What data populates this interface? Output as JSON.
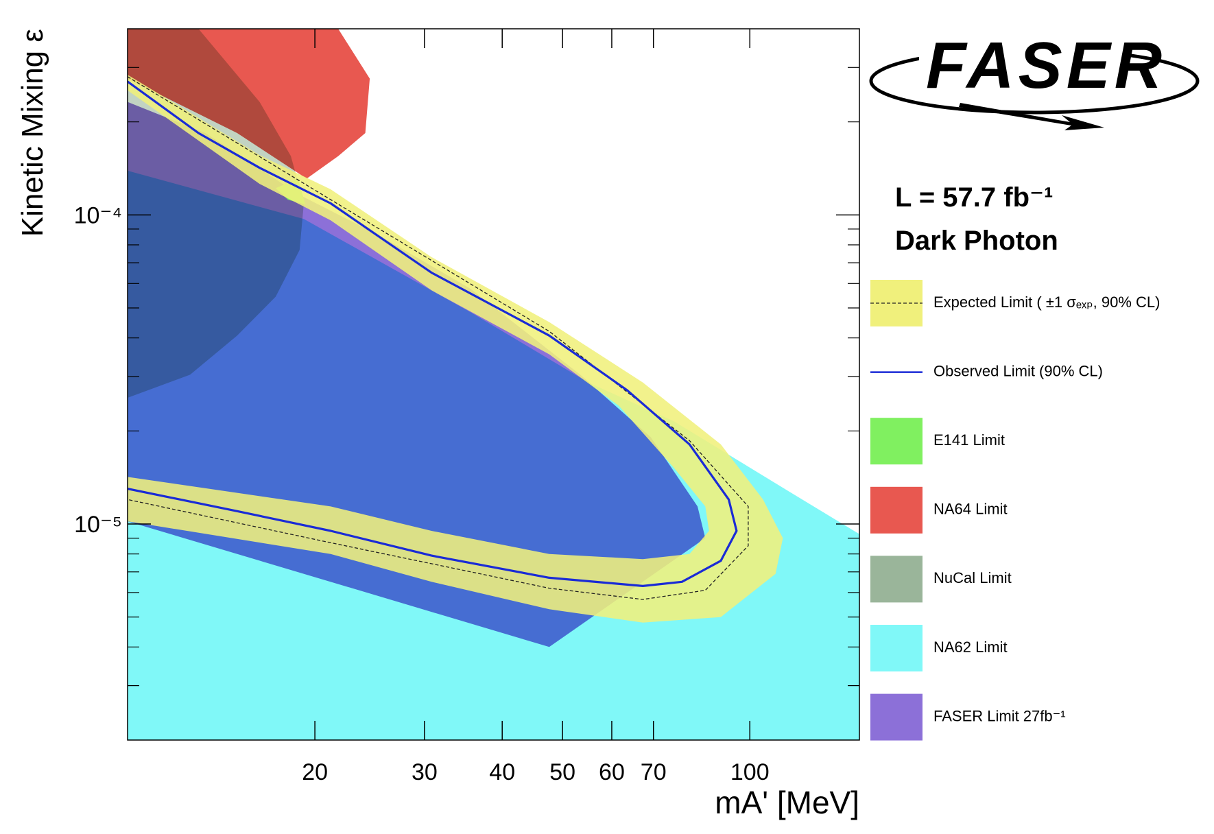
{
  "chart_data": {
    "type": "exclusion",
    "logo": "FASER",
    "luminosity": "L = 57.7 fb⁻¹",
    "model": "Dark Photon",
    "xlabel": "mA' [MeV]",
    "ylabel": "Kinetic Mixing ε",
    "xscale": "log",
    "yscale": "log",
    "xlim": [
      10,
      150
    ],
    "ylim": [
      2e-06,
      0.0004
    ],
    "xticks": [
      20,
      30,
      40,
      50,
      60,
      70,
      100
    ],
    "yticks": [
      {
        "value": 1e-05,
        "label": "10⁻⁵"
      },
      {
        "value": 0.0001,
        "label": "10⁻⁴"
      }
    ],
    "yminorticks": [
      3e-06,
      4e-06,
      5e-06,
      6e-06,
      7e-06,
      8e-06,
      9e-06,
      2e-05,
      3e-05,
      4e-05,
      5e-05,
      6e-05,
      7e-05,
      8e-05,
      9e-05,
      0.0002,
      0.0003
    ],
    "series": [
      {
        "name": "Expected Limit ( ±1 σₑₓₚ, 90% CL)",
        "style": "band",
        "color": "#f0f07c",
        "x": [
          10,
          16.3,
          21.2,
          30.8,
          47.6,
          67.3,
          89.8,
          105,
          113,
          110,
          89.8,
          67.3,
          47.6,
          30.8,
          21.2,
          10,
          10,
          21.2,
          30.8,
          47.6,
          67.3,
          80,
          86,
          84.8,
          75.5,
          61.6,
          47.6,
          30.8,
          21.2,
          16.3,
          10
        ],
        "y": [
          0.000284,
          0.000156,
          0.000121,
          7.3e-05,
          4.5e-05,
          2.87e-05,
          1.81e-05,
          1.2e-05,
          9e-06,
          6.9e-06,
          5e-06,
          4.8e-06,
          5.3e-06,
          6.5e-06,
          8e-06,
          1.02e-05,
          1.42e-05,
          1.14e-05,
          9.5e-06,
          8e-06,
          7.7e-06,
          8e-06,
          9.5e-06,
          1.14e-05,
          1.52e-05,
          2.41e-05,
          3.54e-05,
          5.7e-05,
          9.6e-05,
          0.000126,
          0.000253
        ],
        "center_x": [
          10,
          21.2,
          47.6,
          80,
          99.4,
          99.4,
          84.8,
          67.3,
          47.6,
          21.2,
          10
        ],
        "center_y": [
          0.00028,
          0.000112,
          4.2e-05,
          1.86e-05,
          1.14e-05,
          8.5e-06,
          6.1e-06,
          5.7e-06,
          6.2e-06,
          8.7e-06,
          1.2e-05
        ]
      },
      {
        "name": "Observed Limit (90% CL)",
        "style": "line",
        "color": "#1a2bd6",
        "x": [
          10,
          13.0,
          16.3,
          21.2,
          30.8,
          47.6,
          63.5,
          80,
          92.5,
          95.2,
          89.8,
          77.8,
          67.3,
          47.6,
          30.8,
          21.2,
          15.0,
          10
        ],
        "y": [
          0.00027,
          0.000184,
          0.000142,
          0.000109,
          6.5e-05,
          4.07e-05,
          2.71e-05,
          1.81e-05,
          1.2e-05,
          9.5e-06,
          7.6e-06,
          6.5e-06,
          6.3e-06,
          6.7e-06,
          7.9e-06,
          9.5e-06,
          1.1e-05,
          1.3e-05
        ]
      },
      {
        "name": "E141 Limit",
        "style": "region",
        "color": "#80f060",
        "x": [
          17.3,
          18.8,
          19.3,
          18.1
        ],
        "y": [
          0.000122,
          0.000131,
          0.000108,
          0.000112
        ]
      },
      {
        "name": "NA64 Limit",
        "style": "region",
        "color": "#e85850",
        "x": [
          10,
          21.8,
          24.5,
          24.1,
          21.8,
          19.4,
          15.0,
          10
        ],
        "y": [
          0.0004,
          0.0004,
          0.000276,
          0.000184,
          0.000155,
          0.000131,
          0.000184,
          0.000276
        ]
      },
      {
        "name": "NuCal Limit",
        "style": "region",
        "color": "#9ab59a",
        "x": [
          10,
          13.0,
          16.3,
          18.3,
          19.2,
          18.9,
          17.3,
          15.0,
          12.6,
          10
        ],
        "y": [
          0.0004,
          0.0004,
          0.000232,
          0.000155,
          0.000109,
          7.7e-05,
          5.44e-05,
          4.07e-05,
          3.04e-05,
          2.56e-05
        ]
      },
      {
        "name": "NA62 Limit",
        "style": "region",
        "color": "#80f8f8",
        "x": [
          10,
          150,
          150,
          113,
          75.5,
          55.0,
          35.6,
          19.2,
          10
        ],
        "y": [
          2e-06,
          2e-06,
          9.27e-06,
          1.31e-05,
          2.15e-05,
          2.87e-05,
          4.84e-05,
          9.7e-05,
          0.000139
        ]
      },
      {
        "name": "FASER Limit 27fb⁻¹",
        "style": "region",
        "color": "#8c70d8",
        "x": [
          10,
          13.34,
          18.9,
          25.2,
          35.6,
          53.4,
          69.3,
          82.4,
          84.8,
          47.6,
          10
        ],
        "y": [
          0.000232,
          0.000184,
          0.000116,
          8.65e-05,
          5.76e-05,
          3.04e-05,
          1.91e-05,
          1.14e-05,
          9e-06,
          4e-06,
          1.02e-05
        ]
      }
    ]
  }
}
